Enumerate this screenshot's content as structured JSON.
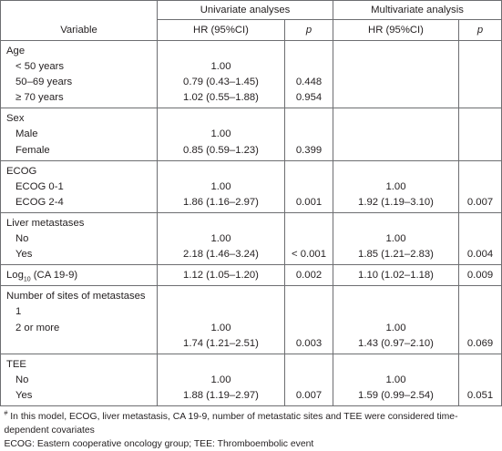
{
  "header": {
    "univariate": "Univariate analyses",
    "multivariate": "Multivariate analysis",
    "variable": "Variable",
    "hr_uni": "HR (95%CI)",
    "p_uni": "p",
    "hr_multi": "HR (95%CI)",
    "p_multi": "p"
  },
  "groups": [
    {
      "label": "Age",
      "rows": [
        {
          "label": "< 50 years",
          "hr1": "1.00",
          "p1": "",
          "hr2": "",
          "p2": ""
        },
        {
          "label": "50–69 years",
          "hr1": "0.79 (0.43–1.45)",
          "p1": "0.448",
          "hr2": "",
          "p2": ""
        },
        {
          "label": "≥ 70 years",
          "hr1": "1.02 (0.55–1.88)",
          "p1": "0.954",
          "hr2": "",
          "p2": ""
        }
      ]
    },
    {
      "label": "Sex",
      "rows": [
        {
          "label": "Male",
          "hr1": "1.00",
          "p1": "",
          "hr2": "",
          "p2": ""
        },
        {
          "label": "Female",
          "hr1": "0.85 (0.59–1.23)",
          "p1": "0.399",
          "hr2": "",
          "p2": ""
        }
      ]
    },
    {
      "label": "ECOG",
      "rows": [
        {
          "label": "ECOG 0-1",
          "hr1": "1.00",
          "p1": "",
          "hr2": "1.00",
          "p2": ""
        },
        {
          "label": "ECOG 2-4",
          "hr1": "1.86 (1.16–2.97)",
          "p1": "0.001",
          "hr2": "1.92 (1.19–3.10)",
          "p2": "0.007"
        }
      ]
    },
    {
      "label": "Liver metastases",
      "rows": [
        {
          "label": "No",
          "hr1": "1.00",
          "p1": "",
          "hr2": "1.00",
          "p2": ""
        },
        {
          "label": "Yes",
          "hr1": "2.18 (1.46–3.24)",
          "p1": "< 0.001",
          "hr2": "1.85 (1.21–2.83)",
          "p2": "0.004"
        }
      ]
    },
    {
      "inline": true,
      "label_main": "Log",
      "label_sub": "10",
      "label_rest": " (CA 19-9)",
      "hr1": "1.12 (1.05–1.20)",
      "p1": "0.002",
      "hr2": "1.10 (1.02–1.18)",
      "p2": "0.009"
    },
    {
      "label": "Number of sites of metastases",
      "rows": [
        {
          "label": "1",
          "hr1": "",
          "p1": "",
          "hr2": "",
          "p2": ""
        },
        {
          "label": "2 or more",
          "hr1": "1.00",
          "p1": "",
          "hr2": "1.00",
          "p2": ""
        },
        {
          "label": "",
          "hr1": "1.74 (1.21–2.51)",
          "p1": "0.003",
          "hr2": "1.43 (0.97–2.10)",
          "p2": "0.069"
        }
      ]
    },
    {
      "label": "TEE",
      "rows": [
        {
          "label": "No",
          "hr1": "1.00",
          "p1": "",
          "hr2": "1.00",
          "p2": ""
        },
        {
          "label": "Yes",
          "hr1": "1.88 (1.19–2.97)",
          "p1": "0.007",
          "hr2": "1.59 (0.99–2.54)",
          "p2": "0.051"
        }
      ]
    }
  ],
  "footnotes": {
    "mark": "#",
    "note1": " In this model, ECOG, liver metastasis, CA 19-9, number of metastatic sites and TEE were considered time-dependent covariates",
    "note2": "ECOG: Eastern cooperative oncology group; TEE: Thromboembolic event"
  }
}
